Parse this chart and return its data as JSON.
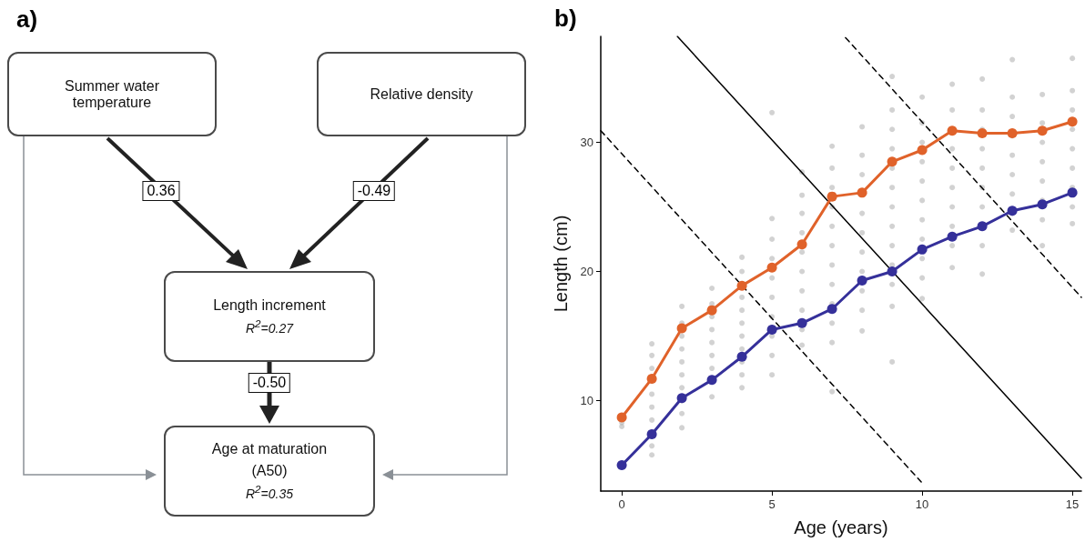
{
  "chart_data": [
    {
      "type": "other",
      "title": "a)",
      "annotations": [
        "Summer water temperature",
        "Relative density",
        "Length increment",
        "R$^{2}$=0.27",
        "Age at maturation",
        "(A50)",
        "R$^{2}$=0.35",
        "0.36",
        "-0.49",
        "-0.50"
      ]
    },
    {
      "type": "line",
      "title": "b)",
      "xlabel": "Age (years)",
      "ylabel": "Length (cm)",
      "xlim": [
        -0.7,
        15.3
      ],
      "ylim": [
        3,
        38.2
      ],
      "xticks": [
        0,
        5,
        10,
        15
      ],
      "yticks": [
        10,
        20,
        30
      ],
      "grid": false,
      "x": [
        0,
        1,
        2,
        3,
        4,
        5,
        6,
        7,
        8,
        9,
        10,
        11,
        12,
        13,
        14,
        15
      ],
      "series": [
        {
          "type": "scatter",
          "color": "#a6a6a6",
          "marker": "circle",
          "x": [
            0,
            0,
            1,
            1,
            1,
            1,
            1,
            1,
            1,
            1,
            1,
            2,
            2,
            2,
            2,
            2,
            2,
            2,
            2,
            2,
            2,
            3,
            3,
            3,
            3,
            3,
            3,
            3,
            3,
            4,
            4,
            4,
            4,
            4,
            4,
            4,
            4,
            4,
            4,
            5,
            5,
            5,
            5,
            5,
            5,
            5,
            5,
            5,
            5,
            6,
            6,
            6,
            6,
            6,
            6,
            6,
            6,
            6,
            6,
            7,
            7,
            7,
            7,
            7,
            7,
            7,
            7,
            7,
            7,
            7,
            7,
            8,
            8,
            8,
            8,
            8,
            8,
            8,
            8,
            8,
            8,
            9,
            9,
            9,
            9,
            9,
            9,
            9,
            9,
            9,
            9,
            9,
            9,
            9,
            10,
            10,
            10,
            10,
            10,
            10,
            10,
            10,
            10,
            10,
            10,
            11,
            11,
            11,
            11,
            11,
            11,
            11,
            11,
            11,
            12,
            12,
            12,
            12,
            12,
            12,
            12,
            12,
            12,
            13,
            13,
            13,
            13,
            13,
            13,
            13,
            13,
            13,
            14,
            14,
            14,
            14,
            14,
            14,
            14,
            14,
            15,
            15,
            15,
            15,
            15,
            15,
            15,
            15,
            15
          ],
          "values": [
            8.0,
            8.3,
            5.8,
            6.5,
            8.5,
            9.5,
            10.5,
            11.5,
            12.5,
            13.5,
            14.4,
            7.9,
            9,
            10,
            11,
            12,
            13,
            14,
            15,
            16,
            17.3,
            10.3,
            12.5,
            13.5,
            14.5,
            15.5,
            16.5,
            17.5,
            18.7,
            11.0,
            12,
            13,
            14,
            15,
            16,
            17,
            18,
            20,
            21.1,
            12.0,
            13.5,
            15,
            16.5,
            18,
            19.5,
            21,
            22.5,
            24.1,
            32.3,
            14.3,
            15.5,
            17,
            18.5,
            20,
            21.5,
            23,
            24.5,
            25.9,
            27.7,
            10.7,
            14.5,
            16,
            17.5,
            19,
            20.5,
            22,
            23.5,
            25,
            26.5,
            28,
            29.7,
            15.4,
            17,
            18.5,
            20,
            21.5,
            23,
            24.5,
            27.5,
            29,
            31.2,
            13.0,
            17.3,
            19,
            20.5,
            22,
            23.5,
            25,
            26.5,
            28,
            29.5,
            31,
            32.5,
            35.1,
            17.9,
            19.5,
            21,
            22.5,
            24,
            25.5,
            27,
            28.5,
            30,
            31.5,
            33.5,
            20.3,
            22,
            23.5,
            25,
            26.5,
            28,
            29.5,
            32.5,
            34.5,
            19.8,
            22,
            25,
            26.5,
            28,
            29.5,
            31,
            32.5,
            34.9,
            23.2,
            24.5,
            26,
            27.5,
            29,
            30.5,
            32,
            33.5,
            36.4,
            22.0,
            24,
            25.5,
            27,
            28.5,
            30,
            31.5,
            33.7,
            23.7,
            25,
            26.5,
            28,
            29.5,
            31,
            32.5,
            34,
            36.5
          ]
        },
        {
          "type": "line",
          "color": "#000000",
          "marker": "none",
          "line_style": "solid",
          "x": [
            1.85,
            15.3
          ],
          "values": [
            38.2,
            4.0
          ]
        },
        {
          "type": "line",
          "color": "#000000",
          "marker": "none",
          "line_style": "dashed",
          "x": [
            -0.7,
            9.97
          ],
          "values": [
            30.9,
            3.7
          ]
        },
        {
          "type": "line",
          "color": "#000000",
          "marker": "none",
          "line_style": "dashed",
          "x": [
            7.45,
            15.3
          ],
          "values": [
            38.1,
            18.0
          ]
        },
        {
          "type": "line",
          "color": "#e0622a",
          "marker": "circle",
          "line_style": "solid",
          "values": [
            8.7,
            11.7,
            15.6,
            17.0,
            18.9,
            20.3,
            22.1,
            25.8,
            26.1,
            28.5,
            29.4,
            30.9,
            30.7,
            30.7,
            30.9,
            31.6
          ]
        },
        {
          "type": "line",
          "color": "#35309a",
          "marker": "circle",
          "line_style": "solid",
          "values": [
            5.0,
            7.4,
            10.2,
            11.6,
            13.4,
            15.5,
            16.0,
            17.1,
            19.3,
            20.0,
            21.7,
            22.7,
            23.5,
            24.7,
            25.2,
            26.1
          ]
        }
      ]
    }
  ]
}
